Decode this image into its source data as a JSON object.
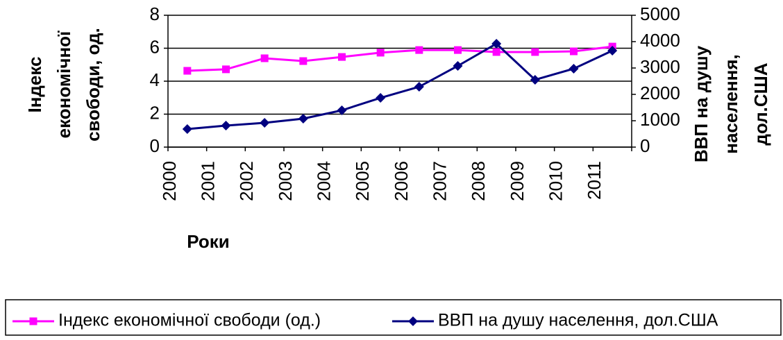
{
  "chart_data": {
    "type": "line",
    "x_label": "Роки",
    "y_label": [
      "Індекс",
      "економічної",
      "свободи, од."
    ],
    "y2_label": [
      "ВВП на душу",
      "населення,",
      "дол.США"
    ],
    "categories": [
      "2000",
      "2001",
      "2002",
      "2003",
      "2004",
      "2005",
      "2006",
      "2007",
      "2008",
      "2009",
      "2010",
      "2011"
    ],
    "series": [
      {
        "name": "Індекс економічної свободи (од.)",
        "color": "#ff00ff",
        "marker": "square",
        "values": [
          4.63,
          4.72,
          5.39,
          5.22,
          5.47,
          5.73,
          5.89,
          5.89,
          5.77,
          5.77,
          5.81,
          6.1
        ]
      },
      {
        "name": "ВВП на душу населення, дол.США",
        "color": "#000080",
        "marker": "diamond",
        "axis": "y2",
        "values": [
          684,
          816,
          921,
          1079,
          1395,
          1868,
          2289,
          3079,
          3921,
          2553,
          2974,
          3658
        ]
      }
    ],
    "ylim": [
      0,
      8
    ],
    "yticks": [
      0,
      2,
      4,
      6,
      8
    ],
    "y2lim": [
      0,
      5000
    ],
    "y2ticks": [
      0,
      1000,
      2000,
      3000,
      4000,
      5000
    ],
    "grid": true,
    "legend": "bottom"
  }
}
